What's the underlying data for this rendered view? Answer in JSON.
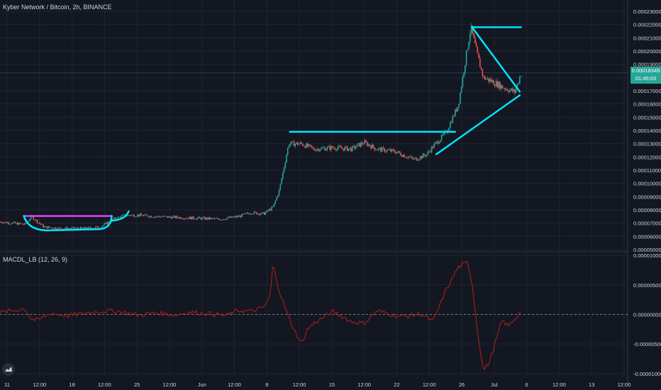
{
  "header": {
    "title": "Kyber Network / Bitcoin, 2h, BINANCE"
  },
  "indicator": {
    "label": "MACDL_LB (12, 26, 9)"
  },
  "price_badge": {
    "price": "0.00018349",
    "countdown": "01:45:03",
    "color": "#26a69a"
  },
  "colors": {
    "background": "#131722",
    "grid": "#1f2430",
    "up": "#26a69a",
    "down": "#ef5350",
    "trendline": "#00e5ff",
    "pattern_top": "#e040fb",
    "macd": "#b71c1c"
  },
  "chart_data": [
    {
      "type": "candlestick",
      "title": "Kyber Network / Bitcoin, 2h, BINANCE",
      "x_ticks": [
        "11",
        "12:00",
        "18",
        "12:00",
        "25",
        "12:00",
        "Jun",
        "12:00",
        "8",
        "12:00",
        "15",
        "12:00",
        "22",
        "12:00",
        "26",
        "Jul",
        "6",
        "12:00",
        "13",
        "12:00"
      ],
      "y_ticks": [
        "0.00023000",
        "0.00022000",
        "0.00021000",
        "0.00020000",
        "0.00019000",
        "0.00018000",
        "0.00017000",
        "0.00016000",
        "0.00015000",
        "0.00014000",
        "0.00013000",
        "0.00012000",
        "0.00011000",
        "0.00010000",
        "0.00009000",
        "0.00008000",
        "0.00007000",
        "0.00006000",
        "0.00005000"
      ],
      "ylim": [
        5e-05,
        0.00023
      ],
      "grid": true,
      "series": [
        {
          "name": "price",
          "x_frac": [
            0,
            0.04,
            0.05,
            0.07,
            0.1,
            0.13,
            0.16,
            0.18,
            0.2,
            0.22,
            0.25,
            0.3,
            0.35,
            0.38,
            0.4,
            0.42,
            0.435,
            0.445,
            0.46,
            0.48,
            0.5,
            0.53,
            0.56,
            0.58,
            0.6,
            0.63,
            0.66,
            0.68,
            0.69,
            0.71,
            0.73,
            0.75,
            0.76,
            0.77,
            0.78,
            0.8,
            0.82,
            0.83
          ],
          "values": [
            7.1e-05,
            6.9e-05,
            7.5e-05,
            6.7e-05,
            6.6e-05,
            6.6e-05,
            6.7e-05,
            7.3e-05,
            7.6e-05,
            7.6e-05,
            7.5e-05,
            7.4e-05,
            7.3e-05,
            7.5e-05,
            7.8e-05,
            7.7e-05,
            8.2e-05,
            9.5e-05,
            0.00013,
            0.00013,
            0.000126,
            0.000127,
            0.000126,
            0.000131,
            0.000126,
            0.000124,
            0.000118,
            0.000122,
            0.000128,
            0.000138,
            0.000159,
            0.000218,
            0.000198,
            0.00018,
            0.000178,
            0.000173,
            0.000169,
            0.000183
          ]
        }
      ],
      "annotations": [
        {
          "shape": "horizontal-line",
          "color": "#e040fb",
          "x_frac": [
            0.038,
            0.178
          ],
          "values": [
            7.54e-05,
            7.54e-05
          ]
        },
        {
          "shape": "horizontal-line",
          "color": "#00e5ff",
          "x_frac": [
            0.462,
            0.725
          ],
          "values": [
            0.000139,
            0.000139
          ]
        },
        {
          "shape": "horizontal-line",
          "color": "#00e5ff",
          "x_frac": [
            0.752,
            0.83
          ],
          "values": [
            0.000218,
            0.000218
          ]
        },
        {
          "shape": "line",
          "color": "#00e5ff",
          "x_frac": [
            0.695,
            0.828
          ],
          "values": [
            0.000122,
            0.0001666
          ]
        },
        {
          "shape": "line",
          "color": "#00e5ff",
          "x_frac": [
            0.752,
            0.828
          ],
          "values": [
            0.000218,
            0.0001694
          ]
        }
      ]
    },
    {
      "type": "line",
      "title": "MACDL_LB (12, 26, 9)",
      "y_ticks": [
        "0.00001000",
        "0.00000500",
        "0.00000000",
        "-0.00000500",
        "-0.00001000"
      ],
      "ylim": [
        -1.05e-05,
        1.05e-05
      ],
      "grid": true,
      "series": [
        {
          "name": "MACDL_LB",
          "x_frac": [
            0,
            0.04,
            0.05,
            0.06,
            0.08,
            0.11,
            0.14,
            0.17,
            0.19,
            0.22,
            0.25,
            0.28,
            0.3,
            0.33,
            0.36,
            0.38,
            0.4,
            0.42,
            0.43,
            0.435,
            0.445,
            0.46,
            0.48,
            0.49,
            0.5,
            0.53,
            0.56,
            0.58,
            0.6,
            0.64,
            0.67,
            0.69,
            0.71,
            0.73,
            0.745,
            0.752,
            0.76,
            0.77,
            0.78,
            0.8,
            0.81,
            0.83
          ],
          "values": [
            3e-07,
            1e-06,
            -8e-07,
            -1e-06,
            2e-07,
            -2e-07,
            3e-07,
            6e-07,
            5e-07,
            -1e-07,
            3e-07,
            -1e-07,
            4e-07,
            2e-07,
            -2e-07,
            7e-07,
            5e-07,
            1.2e-06,
            2.8e-06,
            8.5e-06,
            4e-06,
            -6e-07,
            -5e-06,
            -2.5e-06,
            -1.5e-06,
            5e-07,
            -1.2e-06,
            -1.5e-06,
            6e-07,
            -4e-07,
            1e-07,
            -1.2e-06,
            4e-06,
            8e-06,
            8.8e-06,
            5.5e-06,
            -2e-06,
            -9.5e-06,
            -8e-06,
            -1e-06,
            -2e-06,
            5e-07
          ]
        }
      ]
    }
  ]
}
